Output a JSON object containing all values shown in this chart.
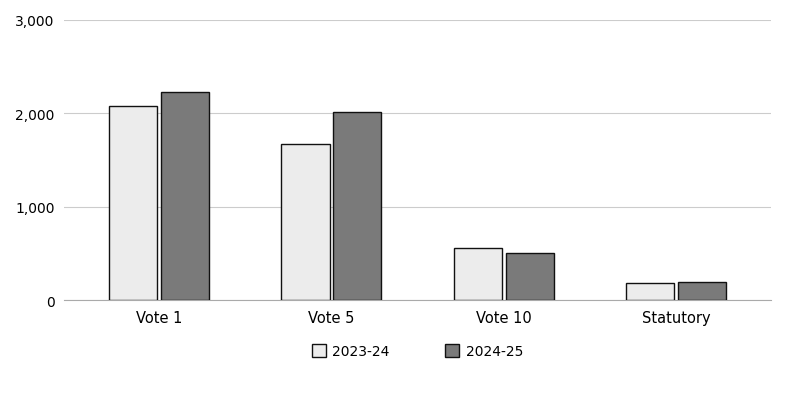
{
  "categories": [
    "Vote 1",
    "Vote 5",
    "Vote 10",
    "Statutory"
  ],
  "series": {
    "2023-24": [
      2075,
      1675,
      560,
      185
    ],
    "2024-25": [
      2225,
      2010,
      510,
      195
    ]
  },
  "bar_colors": {
    "2023-24": "#ececec",
    "2024-25": "#7a7a7a"
  },
  "bar_edgecolors": {
    "2023-24": "#111111",
    "2024-25": "#111111"
  },
  "ylim": [
    0,
    3000
  ],
  "yticks": [
    0,
    1000,
    2000,
    3000
  ],
  "ytick_labels": [
    "0",
    "1,000",
    "2,000",
    "3,000"
  ],
  "bar_width": 0.28,
  "legend_labels": [
    "2023-24",
    "2024-25"
  ],
  "background_color": "#ffffff",
  "grid_color": "#cccccc",
  "axis_label_fontsize": 10.5,
  "tick_fontsize": 10,
  "legend_fontsize": 10
}
